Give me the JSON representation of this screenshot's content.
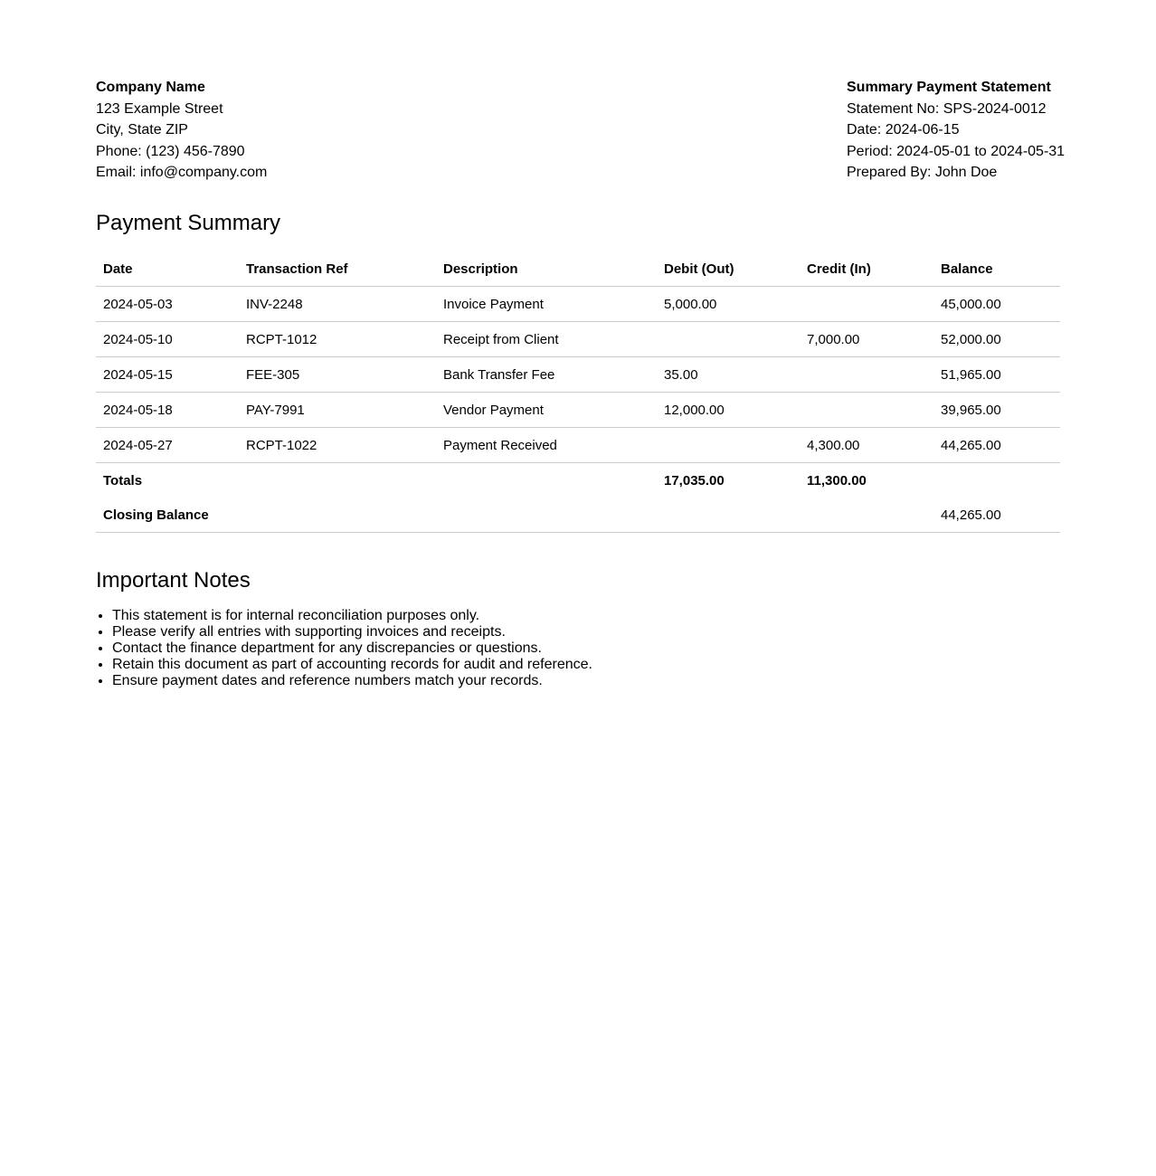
{
  "company": {
    "name": "Company Name",
    "street": "123 Example Street",
    "city": "City, State ZIP",
    "phone": "Phone: (123) 456-7890",
    "email": "Email: info@company.com"
  },
  "statement": {
    "title": "Summary Payment Statement",
    "number": "Statement No: SPS-2024-0012",
    "date": "Date: 2024-06-15",
    "period": "Period: 2024-05-01 to 2024-05-31",
    "prepared_by": "Prepared By: John Doe"
  },
  "summary": {
    "heading": "Payment Summary",
    "columns": [
      "Date",
      "Transaction Ref",
      "Description",
      "Debit (Out)",
      "Credit (In)",
      "Balance"
    ],
    "rows": [
      [
        "2024-05-03",
        "INV-2248",
        "Invoice Payment",
        "5,000.00",
        "",
        "45,000.00"
      ],
      [
        "2024-05-10",
        "RCPT-1012",
        "Receipt from Client",
        "",
        "7,000.00",
        "52,000.00"
      ],
      [
        "2024-05-15",
        "FEE-305",
        "Bank Transfer Fee",
        "35.00",
        "",
        "51,965.00"
      ],
      [
        "2024-05-18",
        "PAY-7991",
        "Vendor Payment",
        "12,000.00",
        "",
        "39,965.00"
      ],
      [
        "2024-05-27",
        "RCPT-1022",
        "Payment Received",
        "",
        "4,300.00",
        "44,265.00"
      ]
    ],
    "totals": {
      "label": "Totals",
      "debit": "17,035.00",
      "credit": "11,300.00"
    },
    "closing": {
      "label": "Closing Balance",
      "balance": "44,265.00"
    }
  },
  "notes": {
    "heading": "Important Notes",
    "items": [
      "This statement is for internal reconciliation purposes only.",
      "Please verify all entries with supporting invoices and receipts.",
      "Contact the finance department for any discrepancies or questions.",
      "Retain this document as part of accounting records for audit and reference.",
      "Ensure payment dates and reference numbers match your records."
    ]
  }
}
